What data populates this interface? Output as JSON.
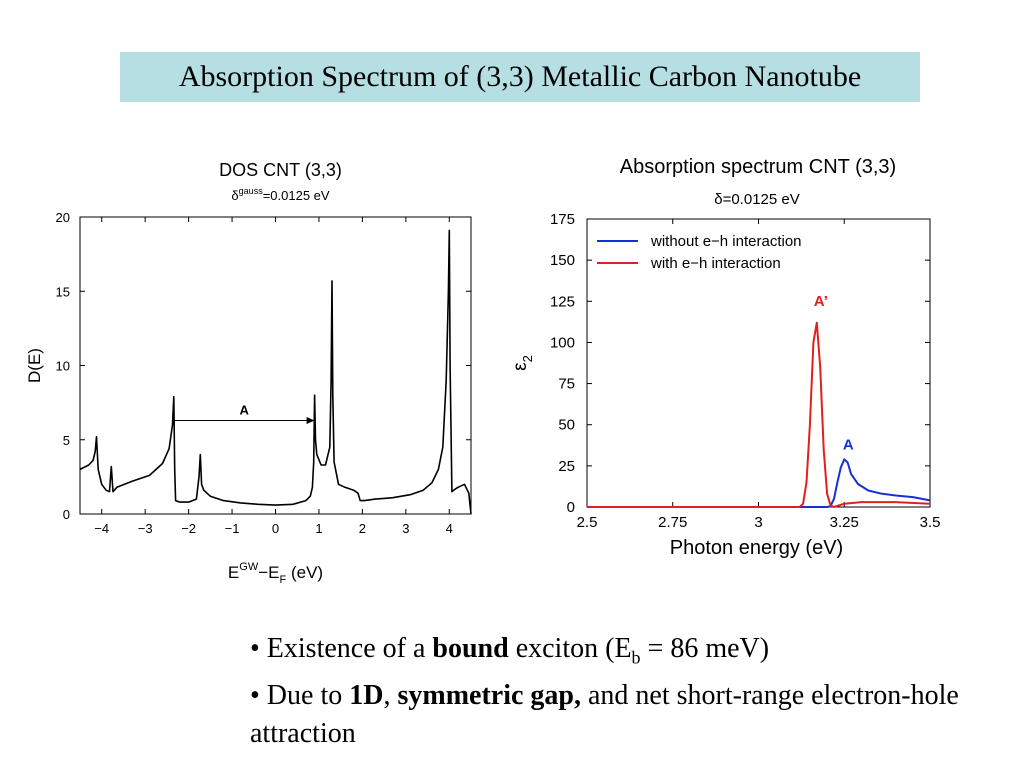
{
  "slide": {
    "title": "Absorption Spectrum of (3,3) Metallic Carbon Nanotube",
    "bullets": [
      {
        "parts": [
          "• Existence of a ",
          "bound",
          " exciton (E",
          "b",
          " = 86 meV)"
        ]
      },
      {
        "parts": [
          "• Due to ",
          "1D",
          ", ",
          "symmetric gap,",
          " and net short-range electron-hole attraction"
        ]
      }
    ]
  },
  "chart_data": [
    {
      "type": "line",
      "title": "DOS CNT (3,3)",
      "subtitle_prefix": "δ",
      "subtitle_sup": "gauss",
      "subtitle_rest": "=0.0125 eV",
      "ylabel": "D(E)",
      "xlabel_main": "E",
      "xlabel_sup": "GW",
      "xlabel_dash": "−E",
      "xlabel_sub": "F",
      "xlabel_unit": " (eV)",
      "xlim": [
        -4.5,
        4.5
      ],
      "ylim": [
        0,
        20
      ],
      "xticks": [
        -4,
        -3,
        -2,
        -1,
        0,
        1,
        2,
        3,
        4
      ],
      "xtick_labels": [
        "−4",
        "−3",
        "−2",
        "−1",
        "0",
        "1",
        "2",
        "3",
        "4"
      ],
      "yticks": [
        0,
        5,
        10,
        15,
        20
      ],
      "ytick_labels": [
        "0",
        "5",
        "10",
        "15",
        "20"
      ],
      "series": [
        {
          "color": "#000000",
          "x": [
            -4.5,
            -4.3,
            -4.2,
            -4.15,
            -4.12,
            -4.08,
            -4.0,
            -3.9,
            -3.82,
            -3.78,
            -3.74,
            -3.65,
            -3.3,
            -2.9,
            -2.6,
            -2.45,
            -2.37,
            -2.34,
            -2.32,
            -2.3,
            -2.2,
            -2.0,
            -1.82,
            -1.76,
            -1.73,
            -1.7,
            -1.65,
            -1.5,
            -1.2,
            -0.8,
            -0.4,
            0.0,
            0.4,
            0.7,
            0.8,
            0.85,
            0.88,
            0.9,
            0.92,
            0.95,
            1.05,
            1.15,
            1.25,
            1.28,
            1.3,
            1.32,
            1.35,
            1.45,
            1.6,
            1.8,
            1.9,
            1.95,
            2.05,
            2.3,
            2.7,
            3.1,
            3.4,
            3.6,
            3.75,
            3.85,
            3.93,
            3.98,
            4.0,
            4.02,
            4.06,
            4.1,
            4.2,
            4.35,
            4.45,
            4.5
          ],
          "y": [
            3.0,
            3.3,
            3.6,
            4.2,
            5.2,
            3.0,
            2.0,
            1.6,
            1.5,
            3.2,
            1.5,
            1.8,
            2.2,
            2.6,
            3.4,
            4.4,
            6.0,
            7.9,
            3.0,
            0.9,
            0.8,
            0.8,
            1.0,
            2.5,
            4.0,
            2.0,
            1.6,
            1.2,
            0.9,
            0.75,
            0.65,
            0.6,
            0.65,
            0.9,
            1.2,
            1.8,
            3.5,
            8.0,
            5.0,
            4.0,
            3.3,
            3.3,
            4.5,
            9.0,
            15.7,
            8.0,
            3.5,
            2.0,
            1.8,
            1.6,
            1.4,
            0.9,
            0.9,
            1.0,
            1.1,
            1.3,
            1.6,
            2.1,
            3.0,
            4.5,
            9.0,
            15.0,
            19.1,
            10.0,
            1.5,
            1.6,
            1.8,
            2.0,
            1.4,
            0.0
          ]
        }
      ],
      "annotation": {
        "label": "A",
        "from_x": -2.34,
        "to_x": 0.9,
        "y": 6.3
      }
    },
    {
      "type": "line",
      "title": "Absorption spectrum CNT (3,3)",
      "subtitle": "δ=0.0125 eV",
      "xlabel": "Photon energy (eV)",
      "ylabel_main": "ε",
      "ylabel_sub": "2",
      "xlim": [
        2.5,
        3.5
      ],
      "ylim": [
        0,
        175
      ],
      "xticks": [
        2.5,
        2.75,
        3.0,
        3.25,
        3.5
      ],
      "xtick_labels": [
        "2.5",
        "2.75",
        "3",
        "3.25",
        "3.5"
      ],
      "yticks": [
        0,
        25,
        50,
        75,
        100,
        125,
        150,
        175
      ],
      "ytick_labels": [
        "0",
        "25",
        "50",
        "75",
        "100",
        "125",
        "150",
        "175"
      ],
      "legend_position": "top-left",
      "series": [
        {
          "name": "without e−h interaction",
          "color": "#1530d6",
          "x": [
            2.5,
            3.1,
            3.2,
            3.21,
            3.22,
            3.23,
            3.24,
            3.25,
            3.26,
            3.27,
            3.29,
            3.32,
            3.36,
            3.4,
            3.45,
            3.5
          ],
          "y": [
            0,
            0,
            0,
            0.5,
            5,
            15,
            24,
            29,
            27,
            20,
            14,
            10,
            8,
            7,
            6,
            4
          ]
        },
        {
          "name": "with e−h interaction",
          "color": "#e02020",
          "x": [
            2.5,
            3.12,
            3.13,
            3.14,
            3.15,
            3.16,
            3.17,
            3.18,
            3.19,
            3.2,
            3.21,
            3.22,
            3.25,
            3.3,
            3.4,
            3.5
          ],
          "y": [
            0,
            0,
            2,
            15,
            50,
            100,
            112,
            85,
            35,
            8,
            1,
            0,
            2,
            3,
            3,
            2
          ]
        }
      ],
      "annotations": [
        {
          "label": "A’",
          "color": "#e02020",
          "x": 3.17,
          "y": 122
        },
        {
          "label": "A",
          "color": "#1530d6",
          "x": 3.25,
          "y": 35
        }
      ]
    }
  ]
}
